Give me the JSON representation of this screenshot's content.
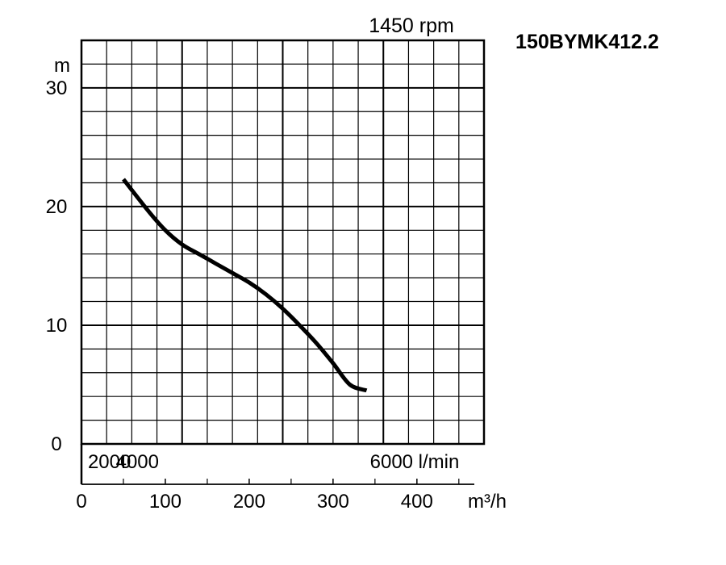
{
  "chart_data": {
    "type": "line",
    "title": "1450 rpm",
    "model": "150BYMK412.2",
    "ylabel": "m",
    "ylim": [
      0,
      34
    ],
    "y_ticks": [
      "0",
      "10",
      "20",
      "30"
    ],
    "x_primary": {
      "unit": "m³/h",
      "xlim": [
        0,
        480
      ],
      "ticks": [
        "0",
        "100",
        "200",
        "300",
        "400"
      ]
    },
    "x_secondary": {
      "unit_label": "6000 l/min",
      "ticks": [
        "2000",
        "4000"
      ]
    },
    "grid": true,
    "series": [
      {
        "x": [
          50,
          80,
          100,
          120,
          140,
          160,
          180,
          200,
          220,
          240,
          260,
          280,
          300,
          320,
          340
        ],
        "y": [
          22.3,
          19.6,
          18.0,
          16.8,
          16.0,
          15.2,
          14.4,
          13.6,
          12.6,
          11.4,
          10.0,
          8.5,
          6.8,
          5.0,
          4.5
        ]
      }
    ]
  }
}
